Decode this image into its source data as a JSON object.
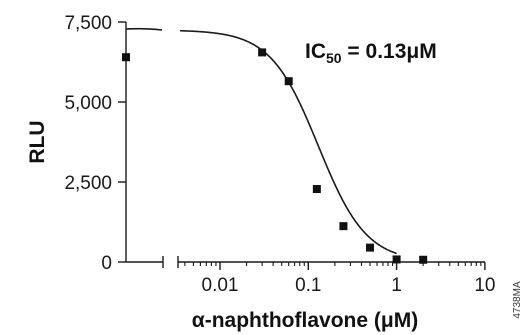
{
  "chart_data": {
    "type": "scatter",
    "title": "",
    "xlabel": "α-naphthoflavone (μM)",
    "ylabel": "RLU",
    "x_scale": "log",
    "x_ticks": [
      0.01,
      0.1,
      1,
      10
    ],
    "x_tick_labels": [
      "0.01",
      "0.1",
      "1",
      "10"
    ],
    "x_axis_break": true,
    "xlim": [
      0.0025,
      10
    ],
    "y_ticks": [
      0,
      2500,
      5000,
      7500
    ],
    "y_tick_labels": [
      "0",
      "2,500",
      "5,000",
      "7,500"
    ],
    "ylim": [
      0,
      7500
    ],
    "grid": false,
    "annotation": {
      "prefix": "IC",
      "subscript": "50",
      "suffix": " = 0.13μM"
    },
    "zero_point": {
      "x": 0,
      "y": 6400
    },
    "series": [
      {
        "marker": "square",
        "x": [
          0.03,
          0.06,
          0.125,
          0.25,
          0.5,
          1,
          2
        ],
        "y": [
          6550,
          5650,
          2280,
          1120,
          450,
          80,
          70
        ]
      }
    ],
    "fit": {
      "kind": "sigmoidal dose-response",
      "top": 7250,
      "bottom": 0,
      "ic50": 0.13,
      "hill_slope": 1.6
    },
    "side_label": "4738MA"
  }
}
